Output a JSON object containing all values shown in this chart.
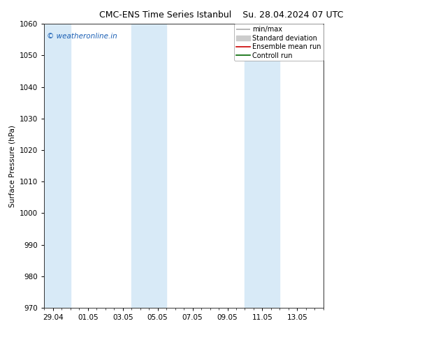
{
  "title_left": "CMC-ENS Time Series Istanbul",
  "title_right": "Su. 28.04.2024 07 UTC",
  "ylabel": "Surface Pressure (hPa)",
  "ylim": [
    970,
    1060
  ],
  "yticks": [
    970,
    980,
    990,
    1000,
    1010,
    1020,
    1030,
    1040,
    1050,
    1060
  ],
  "xlim_left": -0.5,
  "xlim_right": 15.5,
  "xtick_labels": [
    "29.04",
    "01.05",
    "03.05",
    "05.05",
    "07.05",
    "09.05",
    "11.05",
    "13.05"
  ],
  "xtick_positions": [
    0,
    2,
    4,
    6,
    8,
    10,
    12,
    14
  ],
  "shade_bands": [
    {
      "x_start": -0.5,
      "x_end": 1.0
    },
    {
      "x_start": 4.5,
      "x_end": 6.5
    },
    {
      "x_start": 11.0,
      "x_end": 13.0
    }
  ],
  "shade_color": "#d8eaf7",
  "watermark_text": "© weatheronline.in",
  "watermark_color": "#1a5fb4",
  "watermark_fontsize": 7.5,
  "legend_items": [
    {
      "label": "min/max",
      "color": "#aaaaaa",
      "lw": 1.2
    },
    {
      "label": "Standard deviation",
      "color": "#cccccc",
      "lw": 5
    },
    {
      "label": "Ensemble mean run",
      "color": "#cc0000",
      "lw": 1.2
    },
    {
      "label": "Controll run",
      "color": "#006600",
      "lw": 1.2
    }
  ],
  "bg_color": "#ffffff",
  "fig_width": 6.34,
  "fig_height": 4.9,
  "dpi": 100,
  "title_fontsize": 9,
  "axis_fontsize": 7.5,
  "legend_fontsize": 7
}
